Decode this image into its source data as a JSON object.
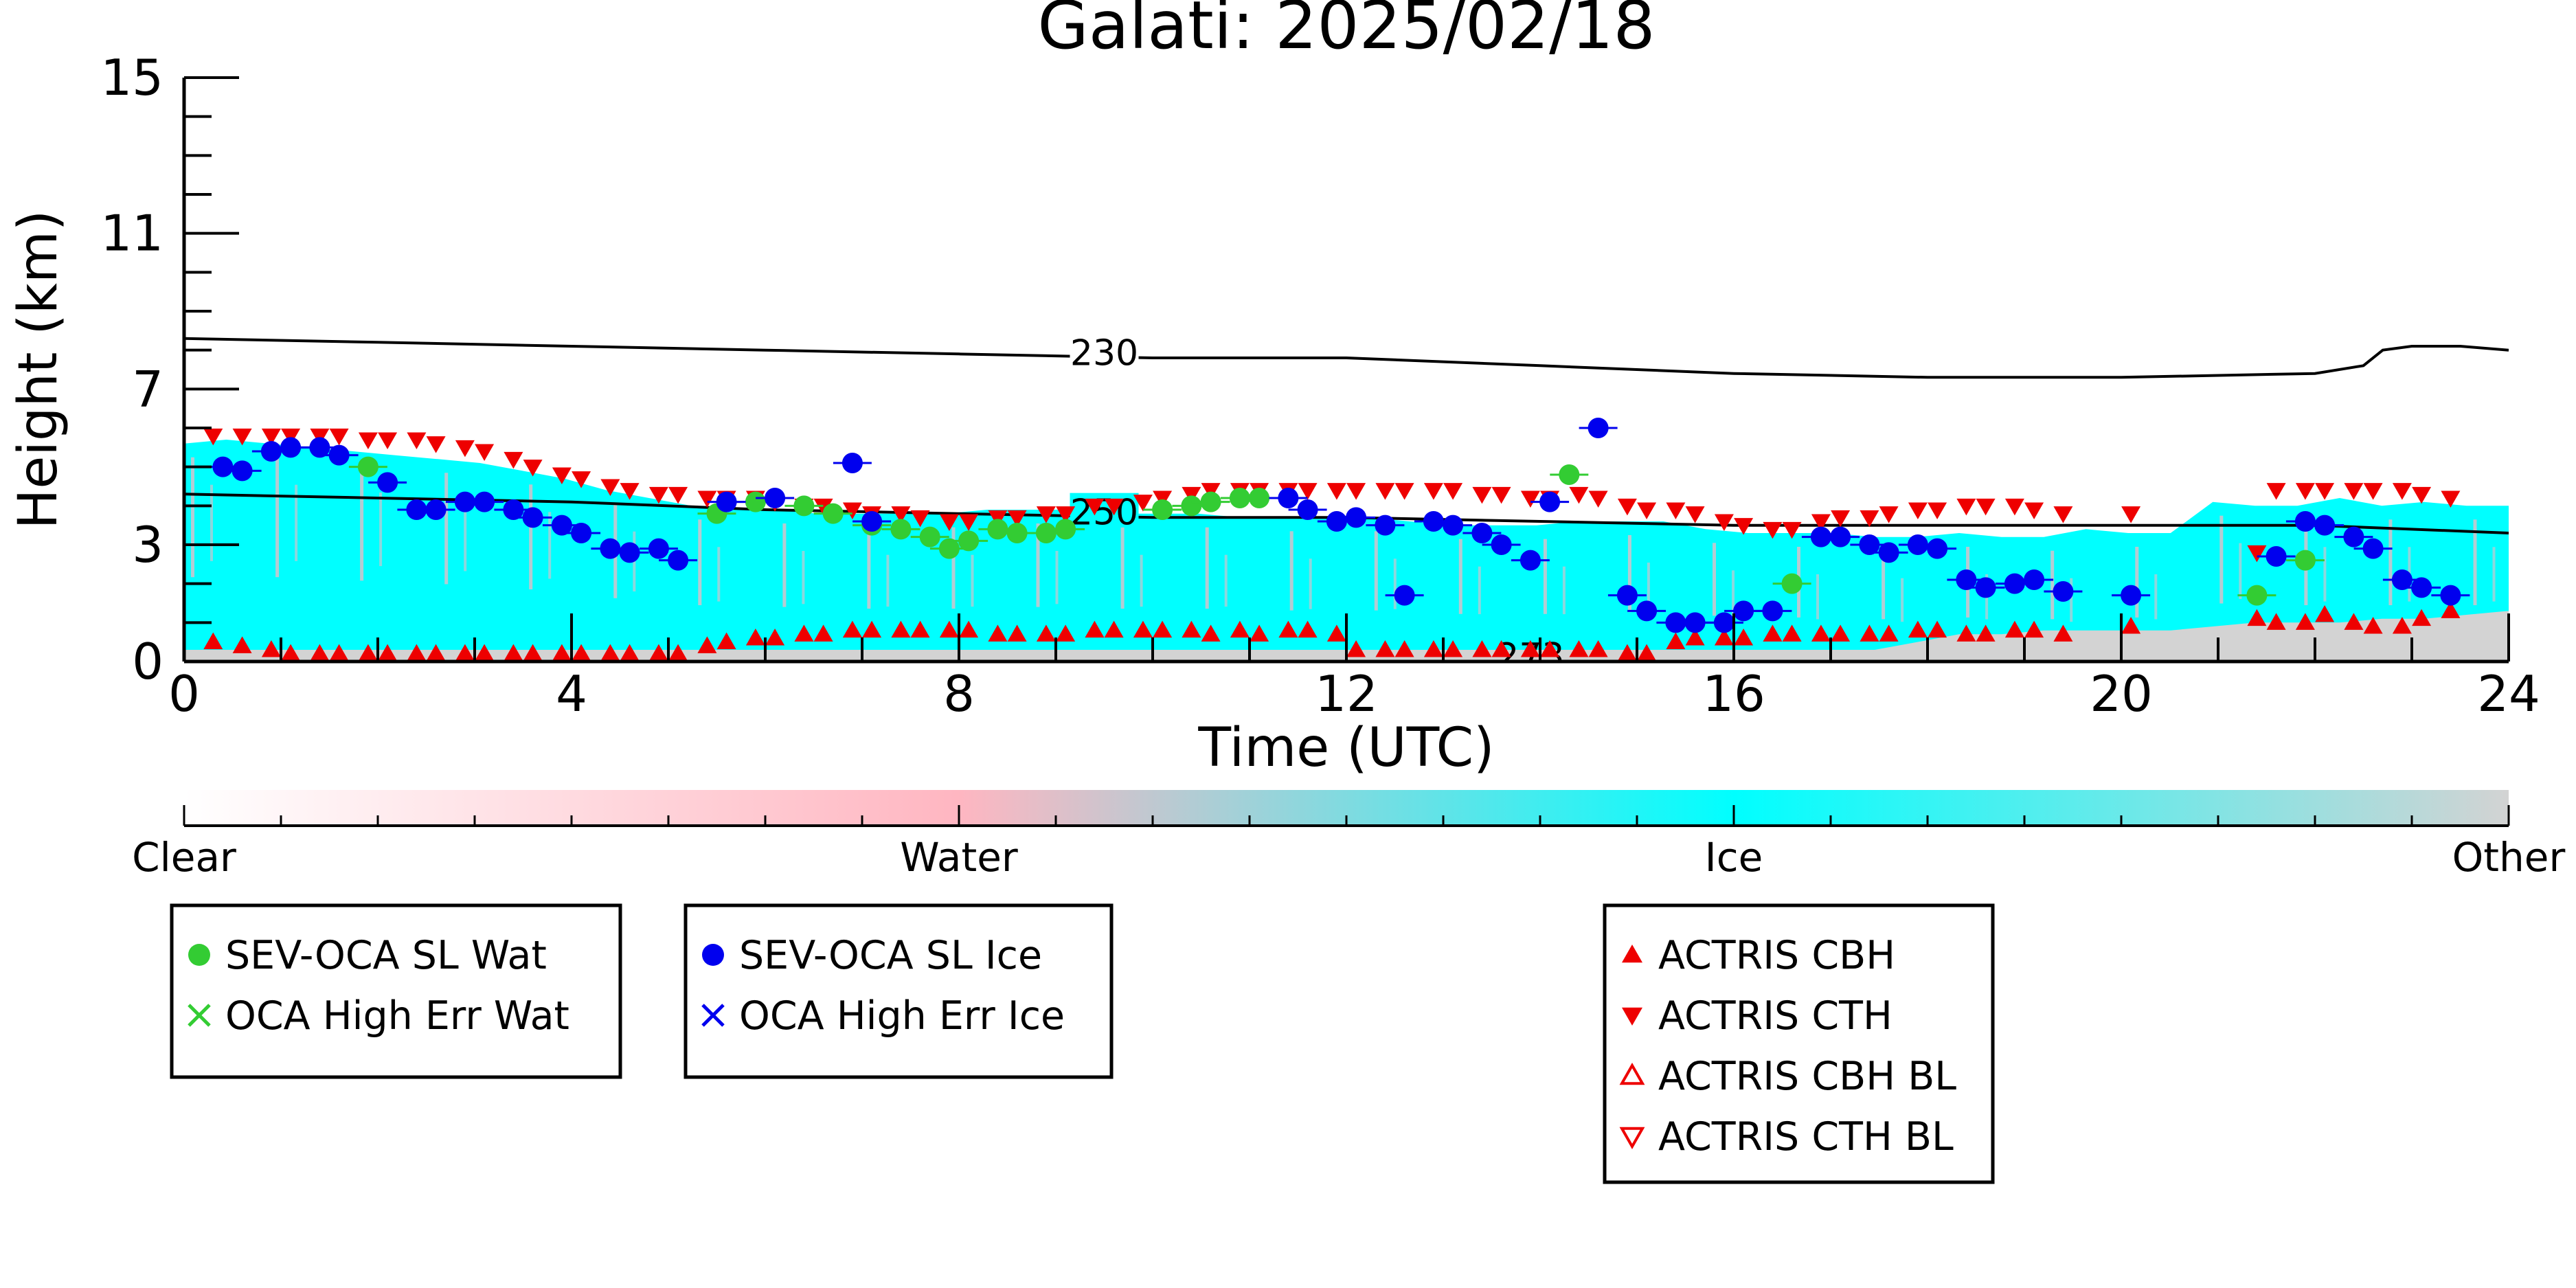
{
  "chart_data": {
    "type": "scatter",
    "title": "Galati: 2025/02/18",
    "xlabel": "Time (UTC)",
    "ylabel": "Height (km)",
    "xlim": [
      0,
      24
    ],
    "ylim": [
      0,
      15
    ],
    "x_ticks": [
      "0",
      "4",
      "8",
      "12",
      "16",
      "20",
      "24"
    ],
    "y_ticks": [
      "0",
      "3",
      "7",
      "11",
      "15"
    ],
    "colorbar": {
      "labels": [
        "Clear",
        "Water",
        "Ice",
        "Other"
      ],
      "colors": [
        "#ffffff",
        "#ffb6c1",
        "#00ffff",
        "#d3d3d3"
      ]
    },
    "background": {
      "classification_top_km": [
        5.6,
        5.7,
        5.6,
        5.5,
        5.4,
        5.3,
        5.2,
        5.1,
        4.9,
        4.7,
        4.4,
        4.2,
        4.0,
        3.9,
        3.9,
        3.8,
        3.8,
        3.8,
        3.8,
        3.9,
        3.9,
        3.9,
        3.8,
        3.8,
        3.8,
        3.7,
        3.7,
        3.7,
        3.7,
        3.6,
        3.5,
        3.5,
        3.5,
        3.6,
        3.6,
        3.6,
        3.4,
        3.3,
        3.3,
        3.3,
        3.2,
        3.2,
        3.3,
        3.2,
        3.2,
        3.4,
        3.3,
        3.3,
        4.1,
        4.0,
        4.0,
        4.2,
        4.0,
        4.1,
        4.0,
        4.0
      ],
      "other_top_km": [
        0.3,
        0.3,
        0.3,
        0.3,
        0.3,
        0.3,
        0.3,
        0.3,
        0.3,
        0.3,
        0.3,
        0.3,
        0.3,
        0.3,
        0.3,
        0.3,
        0.3,
        0.3,
        0.3,
        0.3,
        0.3,
        0.3,
        0.3,
        0.3,
        0.3,
        0.3,
        0.3,
        0.3,
        0.3,
        0.3,
        0.3,
        0.3,
        0.3,
        0.3,
        0.3,
        0.3,
        0.3,
        0.3,
        0.3,
        0.3,
        0.3,
        0.5,
        0.7,
        0.7,
        0.8,
        0.8,
        0.8,
        0.8,
        0.9,
        1.0,
        1.0,
        1.0,
        1.1,
        1.1,
        1.2,
        1.3
      ]
    },
    "contours": [
      {
        "label": "230",
        "x": [
          0,
          2,
          4,
          6,
          8,
          10,
          12,
          14,
          16,
          18,
          20,
          22,
          22.5,
          22.7,
          23,
          23.5,
          24
        ],
        "y": [
          8.3,
          8.2,
          8.1,
          8.0,
          7.9,
          7.8,
          7.8,
          7.6,
          7.4,
          7.3,
          7.3,
          7.4,
          7.6,
          8.0,
          8.1,
          8.1,
          8.0
        ]
      },
      {
        "label": "250",
        "x": [
          0,
          2,
          4,
          6,
          8,
          10,
          12,
          14,
          16,
          18,
          20,
          22,
          24
        ],
        "y": [
          4.3,
          4.2,
          4.1,
          3.9,
          3.8,
          3.7,
          3.7,
          3.6,
          3.5,
          3.5,
          3.5,
          3.5,
          3.3
        ]
      },
      {
        "label": "273",
        "x": [],
        "y": []
      }
    ],
    "series": [
      {
        "name": "SEV-OCA SL Wat",
        "color": "#33cc33",
        "marker": "circle",
        "x": [
          1.9,
          5.5,
          5.9,
          6.4,
          6.7,
          7.1,
          7.4,
          7.7,
          7.9,
          8.1,
          8.4,
          8.6,
          8.9,
          9.1,
          10.1,
          10.4,
          10.6,
          10.9,
          11.1,
          14.3,
          16.6,
          21.4,
          21.9
        ],
        "y": [
          5.0,
          3.8,
          4.1,
          4.0,
          3.8,
          3.5,
          3.4,
          3.2,
          2.9,
          3.1,
          3.4,
          3.3,
          3.3,
          3.4,
          3.9,
          4.0,
          4.1,
          4.2,
          4.2,
          4.8,
          2.0,
          1.7,
          2.6
        ]
      },
      {
        "name": "SEV-OCA SL Ice",
        "color": "#0000ee",
        "marker": "circle",
        "x": [
          0.4,
          0.6,
          0.9,
          1.1,
          1.4,
          1.6,
          2.1,
          2.4,
          2.6,
          2.9,
          3.1,
          3.4,
          3.6,
          3.9,
          4.1,
          4.4,
          4.6,
          4.9,
          5.1,
          5.6,
          6.1,
          6.9,
          7.1,
          11.4,
          11.6,
          11.9,
          12.1,
          12.4,
          12.6,
          12.9,
          13.1,
          13.4,
          13.6,
          13.9,
          14.1,
          14.6,
          14.9,
          15.1,
          15.4,
          15.6,
          15.9,
          16.1,
          16.4,
          16.9,
          17.1,
          17.4,
          17.6,
          17.9,
          18.1,
          18.4,
          18.6,
          18.9,
          19.1,
          19.4,
          20.1,
          21.6,
          21.9,
          22.1,
          22.4,
          22.6,
          22.9,
          23.1,
          23.4
        ],
        "y": [
          5.0,
          4.9,
          5.4,
          5.5,
          5.5,
          5.3,
          4.6,
          3.9,
          3.9,
          4.1,
          4.1,
          3.9,
          3.7,
          3.5,
          3.3,
          2.9,
          2.8,
          2.9,
          2.6,
          4.1,
          4.2,
          5.1,
          3.6,
          4.2,
          3.9,
          3.6,
          3.7,
          3.5,
          1.7,
          3.6,
          3.5,
          3.3,
          3.0,
          2.6,
          4.1,
          6.0,
          1.7,
          1.3,
          1.0,
          1.0,
          1.0,
          1.3,
          1.3,
          3.2,
          3.2,
          3.0,
          2.8,
          3.0,
          2.9,
          2.1,
          1.9,
          2.0,
          2.1,
          1.8,
          1.7,
          2.7,
          3.6,
          3.5,
          3.2,
          2.9,
          2.1,
          1.9,
          1.7
        ]
      },
      {
        "name": "OCA High Err Wat",
        "color": "#33cc33",
        "marker": "x",
        "x": [],
        "y": []
      },
      {
        "name": "OCA High Err Ice",
        "color": "#0000ee",
        "marker": "x",
        "x": [],
        "y": []
      },
      {
        "name": "ACTRIS CBH",
        "color": "#ee0000",
        "marker": "triangle-up",
        "x": [
          0.3,
          0.6,
          0.9,
          1.1,
          1.4,
          1.6,
          1.9,
          2.1,
          2.4,
          2.6,
          2.9,
          3.1,
          3.4,
          3.6,
          3.9,
          4.1,
          4.4,
          4.6,
          4.9,
          5.1,
          5.4,
          5.6,
          5.9,
          6.1,
          6.4,
          6.6,
          6.9,
          7.1,
          7.4,
          7.6,
          7.9,
          8.1,
          8.4,
          8.6,
          8.9,
          9.1,
          9.4,
          9.6,
          9.9,
          10.1,
          10.4,
          10.6,
          10.9,
          11.1,
          11.4,
          11.6,
          11.9,
          12.1,
          12.4,
          12.6,
          12.9,
          13.1,
          13.4,
          13.6,
          13.9,
          14.1,
          14.4,
          14.6,
          14.9,
          15.1,
          15.4,
          15.6,
          15.9,
          16.1,
          16.4,
          16.6,
          16.9,
          17.1,
          17.4,
          17.6,
          17.9,
          18.1,
          18.4,
          18.6,
          18.9,
          19.1,
          19.4,
          20.1,
          21.4,
          21.6,
          21.9,
          22.1,
          22.4,
          22.6,
          22.9,
          23.1,
          23.4
        ],
        "y": [
          0.5,
          0.4,
          0.3,
          0.2,
          0.2,
          0.2,
          0.2,
          0.2,
          0.2,
          0.2,
          0.2,
          0.2,
          0.2,
          0.2,
          0.2,
          0.2,
          0.2,
          0.2,
          0.2,
          0.2,
          0.4,
          0.5,
          0.6,
          0.6,
          0.7,
          0.7,
          0.8,
          0.8,
          0.8,
          0.8,
          0.8,
          0.8,
          0.7,
          0.7,
          0.7,
          0.7,
          0.8,
          0.8,
          0.8,
          0.8,
          0.8,
          0.7,
          0.8,
          0.7,
          0.8,
          0.8,
          0.7,
          0.3,
          0.3,
          0.3,
          0.3,
          0.3,
          0.3,
          0.3,
          0.3,
          0.3,
          0.3,
          0.3,
          0.2,
          0.2,
          0.5,
          0.6,
          0.6,
          0.6,
          0.7,
          0.7,
          0.7,
          0.7,
          0.7,
          0.7,
          0.8,
          0.8,
          0.7,
          0.7,
          0.8,
          0.8,
          0.7,
          0.9,
          1.1,
          1.0,
          1.0,
          1.2,
          1.0,
          0.9,
          0.9,
          1.1,
          1.3
        ]
      },
      {
        "name": "ACTRIS CTH",
        "color": "#ee0000",
        "marker": "triangle-down",
        "x": [
          0.3,
          0.6,
          0.9,
          1.1,
          1.4,
          1.6,
          1.9,
          2.1,
          2.4,
          2.6,
          2.9,
          3.1,
          3.4,
          3.6,
          3.9,
          4.1,
          4.4,
          4.6,
          4.9,
          5.1,
          5.4,
          5.6,
          5.9,
          6.1,
          6.4,
          6.6,
          6.9,
          7.1,
          7.4,
          7.6,
          7.9,
          8.1,
          8.4,
          8.6,
          8.9,
          9.1,
          9.4,
          9.6,
          9.9,
          10.1,
          10.4,
          10.6,
          10.9,
          11.1,
          11.4,
          11.6,
          11.9,
          12.1,
          12.4,
          12.6,
          12.9,
          13.1,
          13.4,
          13.6,
          13.9,
          14.1,
          14.4,
          14.6,
          14.9,
          15.1,
          15.4,
          15.6,
          15.9,
          16.1,
          16.4,
          16.6,
          16.9,
          17.1,
          17.4,
          17.6,
          17.9,
          18.1,
          18.4,
          18.6,
          18.9,
          19.1,
          19.4,
          20.1,
          21.4,
          21.6,
          21.9,
          22.1,
          22.4,
          22.6,
          22.9,
          23.1,
          23.4
        ],
        "y": [
          5.8,
          5.8,
          5.8,
          5.8,
          5.8,
          5.8,
          5.7,
          5.7,
          5.7,
          5.6,
          5.5,
          5.4,
          5.2,
          5.0,
          4.8,
          4.7,
          4.5,
          4.4,
          4.3,
          4.3,
          4.2,
          4.2,
          4.2,
          4.1,
          4.0,
          4.0,
          3.9,
          3.8,
          3.8,
          3.7,
          3.6,
          3.6,
          3.7,
          3.7,
          3.8,
          3.8,
          4.0,
          4.0,
          4.1,
          4.2,
          4.3,
          4.4,
          4.4,
          4.4,
          4.4,
          4.4,
          4.4,
          4.4,
          4.4,
          4.4,
          4.4,
          4.4,
          4.3,
          4.3,
          4.2,
          4.2,
          4.3,
          4.2,
          4.0,
          3.9,
          3.9,
          3.8,
          3.6,
          3.5,
          3.4,
          3.4,
          3.6,
          3.7,
          3.7,
          3.8,
          3.9,
          3.9,
          4.0,
          4.0,
          4.0,
          3.9,
          3.8,
          3.8,
          2.8,
          4.4,
          4.4,
          4.4,
          4.4,
          4.4,
          4.4,
          4.3,
          4.2
        ]
      },
      {
        "name": "ACTRIS CBH BL",
        "color": "#ee0000",
        "marker": "triangle-up-open",
        "x": [],
        "y": []
      },
      {
        "name": "ACTRIS CTH BL",
        "color": "#ee0000",
        "marker": "triangle-down-open",
        "x": [],
        "y": []
      }
    ],
    "legends": [
      {
        "position": "below-left",
        "entries": [
          "SEV-OCA SL Wat",
          "OCA High Err Wat"
        ]
      },
      {
        "position": "below-left-center",
        "entries": [
          "SEV-OCA SL Ice",
          "OCA High Err Ice"
        ]
      },
      {
        "position": "below-center",
        "entries": [
          "ACTRIS CBH",
          "ACTRIS CTH",
          "ACTRIS CBH BL",
          "ACTRIS CTH BL"
        ]
      }
    ]
  }
}
